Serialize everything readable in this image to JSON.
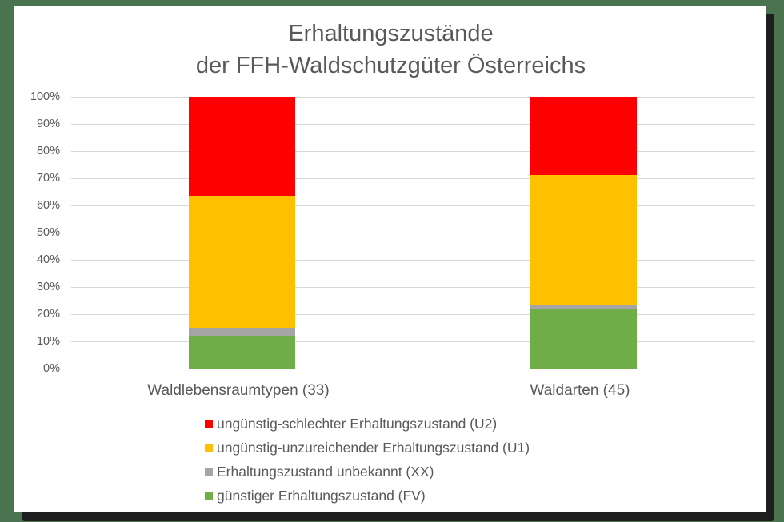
{
  "chart_data": {
    "type": "bar",
    "stacked": "percent",
    "title": "Erhaltungszustände der FFH-Waldschutzgüter Österreichs",
    "title_lines": [
      "Erhaltungszustände",
      "der FFH-Waldschutzgüter Österreichs"
    ],
    "categories": [
      "Waldlebensraumtypen (33)",
      "Waldarten (45)"
    ],
    "series": [
      {
        "name": "günstiger Erhaltungszustand (FV)",
        "color": "#70ad47",
        "values": [
          12.1,
          22.2
        ]
      },
      {
        "name": "Erhaltungszustand unbekannt (XX)",
        "color": "#a5a5a5",
        "values": [
          3.0,
          1.1
        ]
      },
      {
        "name": "ungünstig-unzureichender Erhaltungszustand (U1)",
        "color": "#ffc000",
        "values": [
          48.5,
          47.8
        ]
      },
      {
        "name": "ungünstig-schlechter Erhaltungszustand (U2)",
        "color": "#ff0000",
        "values": [
          36.4,
          28.9
        ]
      }
    ],
    "xlabel": "",
    "ylabel": "",
    "ylim": [
      0,
      100
    ],
    "yticks": [
      "0%",
      "10%",
      "20%",
      "30%",
      "40%",
      "50%",
      "60%",
      "70%",
      "80%",
      "90%",
      "100%"
    ],
    "grid": true,
    "legend_position": "bottom",
    "legend_order": [
      "ungünstig-schlechter Erhaltungszustand (U2)",
      "ungünstig-unzureichender Erhaltungszustand (U1)",
      "Erhaltungszustand unbekannt (XX)",
      "günstiger Erhaltungszustand (FV)"
    ]
  },
  "legend": [
    {
      "label": "ungünstig-schlechter Erhaltungszustand (U2)",
      "color": "#ff0000"
    },
    {
      "label": "ungünstig-unzureichender Erhaltungszustand (U1)",
      "color": "#ffc000"
    },
    {
      "label": "Erhaltungszustand unbekannt (XX)",
      "color": "#a5a5a5"
    },
    {
      "label": "günstiger Erhaltungszustand (FV)",
      "color": "#70ad47"
    }
  ]
}
